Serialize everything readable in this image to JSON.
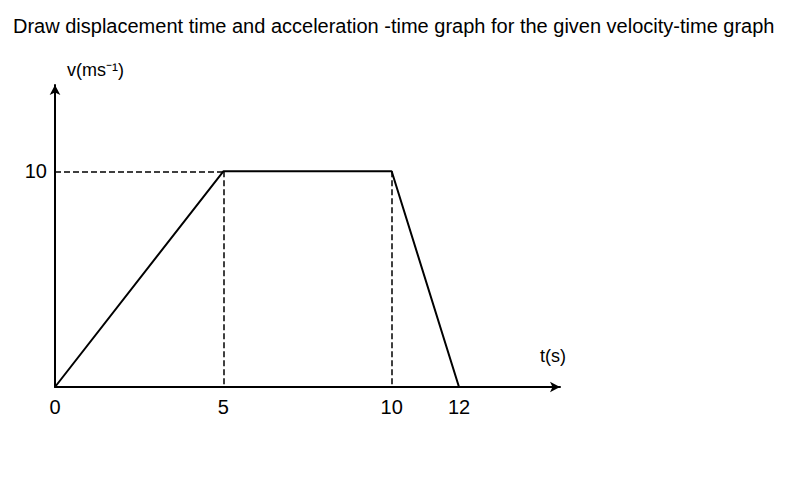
{
  "chart_data": {
    "type": "line",
    "title": "Draw displacement time and acceleration -time graph for the given velocity-time graph",
    "x_label": "t(s)",
    "y_label": "v(ms⁻¹)",
    "x": [
      0,
      5,
      10,
      12
    ],
    "values": [
      0,
      10,
      10,
      0
    ],
    "color": "#000000",
    "xlim": [
      0,
      15
    ],
    "ylim": [
      0,
      14
    ],
    "xticks": [
      0,
      5,
      10,
      12
    ],
    "yticks": [
      10
    ],
    "grid": false
  }
}
